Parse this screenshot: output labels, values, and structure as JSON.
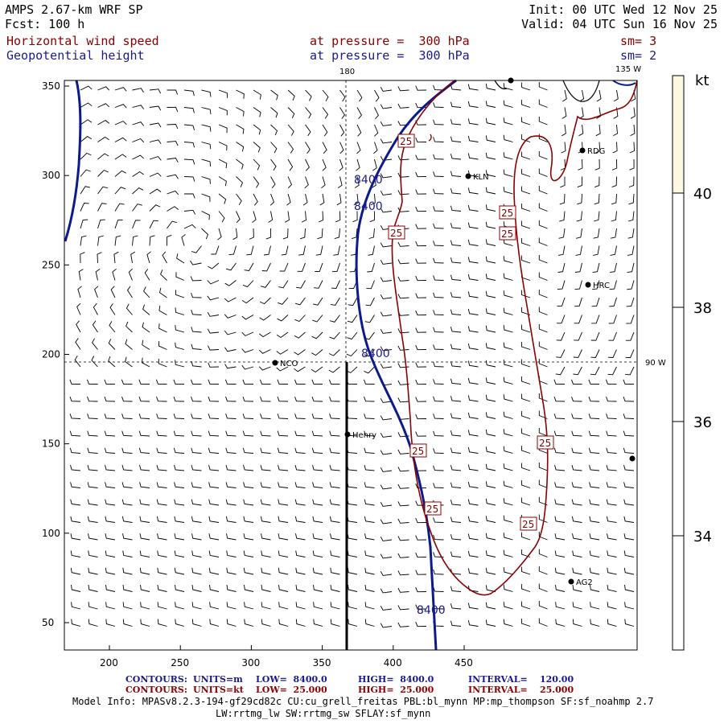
{
  "header": {
    "model": "AMPS 2.67-km WRF SP",
    "fcst": "Fcst: 100 h",
    "init": "Init: 00 UTC Wed 12 Nov 25",
    "valid": "Valid: 04 UTC Sun 16 Nov 25",
    "field1": "Horizontal wind speed",
    "field1_level": "at pressure =  300 hPa",
    "field1_sm": "sm= 3",
    "field2": "Geopotential height",
    "field2_level": "at pressure =  300 hPa",
    "field2_sm": "sm= 2"
  },
  "map": {
    "lon_labels": {
      "top_180": "180",
      "top_135w": "135 W",
      "right_90w": "90 W"
    },
    "x_ticks": [
      "200",
      "250",
      "300",
      "350",
      "400",
      "450"
    ],
    "y_ticks": [
      "350",
      "300",
      "250",
      "200",
      "150",
      "100",
      "50"
    ],
    "contour_labels": {
      "height": "8400",
      "wind": "25"
    },
    "stations": [
      {
        "name": "RDG"
      },
      {
        "name": "KLN"
      },
      {
        "name": "HRC"
      },
      {
        "name": "NCO"
      },
      {
        "name": "Henry"
      },
      {
        "name": "AG2"
      },
      {
        "name": ""
      },
      {
        "name": ""
      }
    ],
    "colors": {
      "height_contour": "#0d1a8c",
      "wind_contour": "#8b0000",
      "colorbar_fill": "#fdf8e1"
    }
  },
  "colorbar": {
    "unit": "kt",
    "labels": [
      "40",
      "38",
      "36",
      "34"
    ]
  },
  "footer": {
    "row1_label": "CONTOURS:",
    "row1_units": "UNITS=m",
    "row1_low": "LOW=  8400.0",
    "row1_high": "HIGH=  8400.0",
    "row1_interval": "INTERVAL=    120.00",
    "row2_label": "CONTOURS:",
    "row2_units": "UNITS=kt",
    "row2_low": "LOW=  25.000",
    "row2_high": "HIGH=  25.000",
    "row2_interval": "INTERVAL=    25.000",
    "model_info": "Model Info: MPASv8.2.3-194-gf29cd82c CU:cu_grell_freitas PBL:bl_mynn MP:mp_thompson SF:sf_noahmp 2.7",
    "model_info2": "LW:rrtmg_lw SW:rrtmg_sw SFLAY:sf_mynn"
  }
}
